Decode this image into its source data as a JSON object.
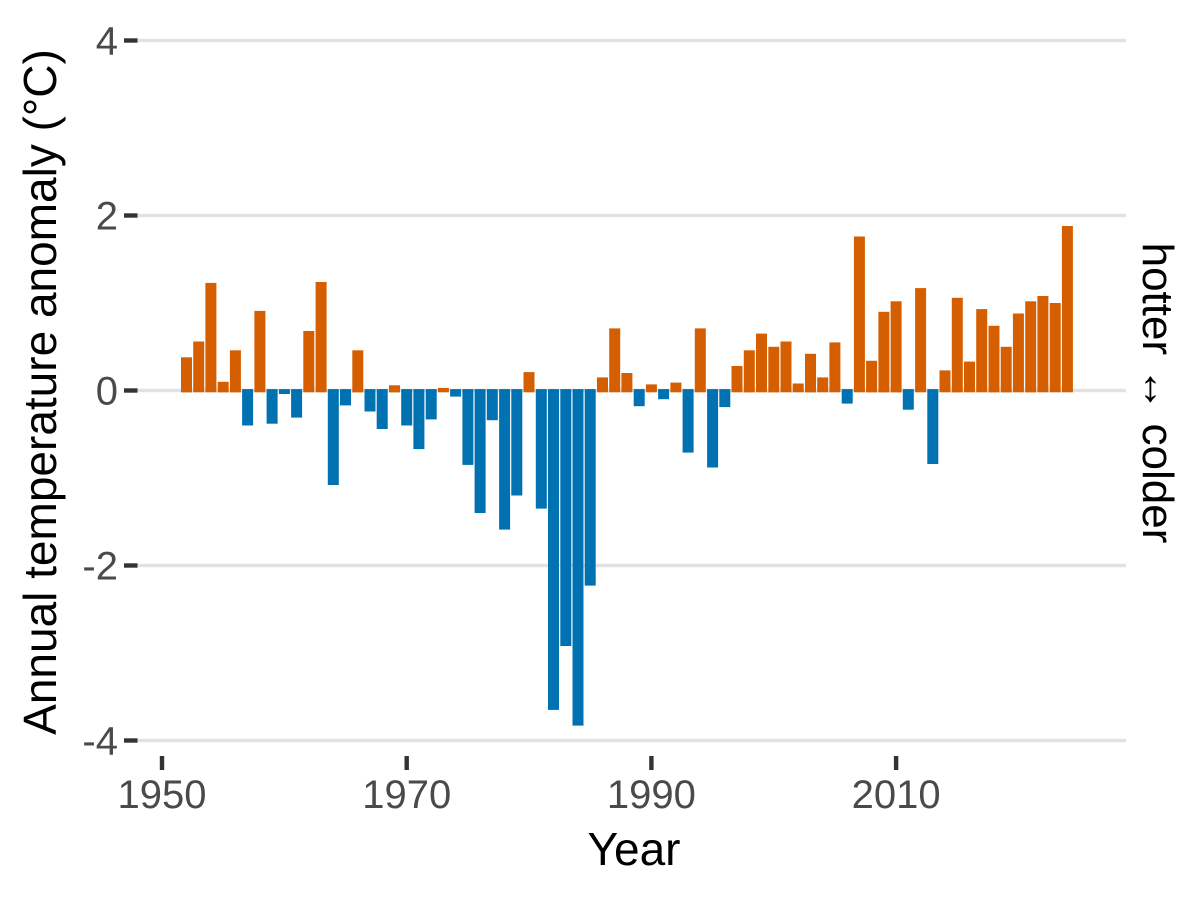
{
  "chart_data": {
    "type": "bar",
    "title": "",
    "xlabel": "Year",
    "ylabel": "Annual temperature anomaly (°C)",
    "right_label": "hotter ↔ colder",
    "x_ticks": [
      1950,
      1970,
      1990,
      2010
    ],
    "y_ticks": [
      4,
      2,
      0,
      -2,
      -4
    ],
    "xlim": [
      1948.2,
      2026.8
    ],
    "ylim": [
      -4.3,
      4.3
    ],
    "grid": "horizontal-only",
    "legend": "none",
    "colors": {
      "positive_bar": "#D55E00",
      "negative_bar": "#0072B2",
      "gridline": "#E2E2E2",
      "tick_mark": "#333333",
      "tick_label": "#4A4A4A",
      "axis_title": "#000000",
      "background": "#FFFFFF"
    },
    "series": [
      {
        "name": "annual temperature anomaly",
        "x": [
          1952,
          1953,
          1954,
          1955,
          1956,
          1957,
          1958,
          1959,
          1960,
          1961,
          1962,
          1963,
          1964,
          1965,
          1966,
          1967,
          1968,
          1969,
          1970,
          1971,
          1972,
          1973,
          1974,
          1975,
          1976,
          1977,
          1978,
          1979,
          1980,
          1981,
          1982,
          1983,
          1984,
          1985,
          1986,
          1987,
          1988,
          1989,
          1990,
          1991,
          1992,
          1993,
          1994,
          1995,
          1996,
          1997,
          1998,
          1999,
          2000,
          2001,
          2002,
          2003,
          2004,
          2005,
          2006,
          2007,
          2008,
          2009,
          2010,
          2011,
          2012,
          2013,
          2014,
          2015,
          2016,
          2017,
          2018,
          2019,
          2020,
          2021,
          2022,
          2023,
          2024
        ],
        "values": [
          0.38,
          0.56,
          1.23,
          0.1,
          0.46,
          -0.4,
          0.91,
          -0.38,
          -0.04,
          -0.31,
          0.68,
          1.24,
          -1.08,
          -0.17,
          0.46,
          -0.24,
          -0.44,
          0.06,
          -0.4,
          -0.67,
          -0.33,
          0.03,
          -0.07,
          -0.85,
          -1.4,
          -0.34,
          -1.59,
          -1.2,
          0.21,
          -1.35,
          -3.65,
          -2.92,
          -3.83,
          -2.23,
          0.15,
          0.71,
          0.2,
          -0.18,
          0.07,
          -0.1,
          0.09,
          -0.71,
          0.71,
          -0.88,
          -0.19,
          0.28,
          0.46,
          0.65,
          0.5,
          0.56,
          0.08,
          0.42,
          0.15,
          0.55,
          -0.15,
          1.76,
          0.34,
          0.9,
          1.02,
          -0.22,
          1.17,
          -0.84,
          0.23,
          1.06,
          0.33,
          0.93,
          0.74,
          0.5,
          0.88,
          1.02,
          1.08,
          1.0,
          1.88
        ]
      }
    ]
  }
}
